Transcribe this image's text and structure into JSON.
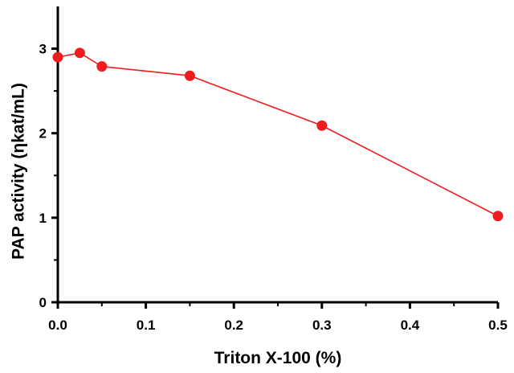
{
  "chart_data": {
    "type": "line",
    "title": "",
    "xlabel": "Triton X-100 (%)",
    "ylabel": "PAP activity (ηkat/mL)",
    "xlim": [
      0,
      0.5
    ],
    "ylim": [
      0,
      3.5
    ],
    "xticks": [
      0.0,
      0.1,
      0.2,
      0.3,
      0.4,
      0.5
    ],
    "xtick_labels": [
      "0.0",
      "0.1",
      "0.2",
      "0.3",
      "0.4",
      "0.5"
    ],
    "yticks": [
      0,
      1,
      2,
      3
    ],
    "ytick_labels": [
      "0",
      "1",
      "2",
      "3"
    ],
    "grid": false,
    "legend": "none",
    "series": [
      {
        "color": "#ee1c1c",
        "marker": "circle",
        "x": [
          0.0,
          0.025,
          0.05,
          0.15,
          0.3,
          0.5
        ],
        "y": [
          2.9,
          2.95,
          2.79,
          2.68,
          2.09,
          1.02
        ]
      }
    ]
  }
}
